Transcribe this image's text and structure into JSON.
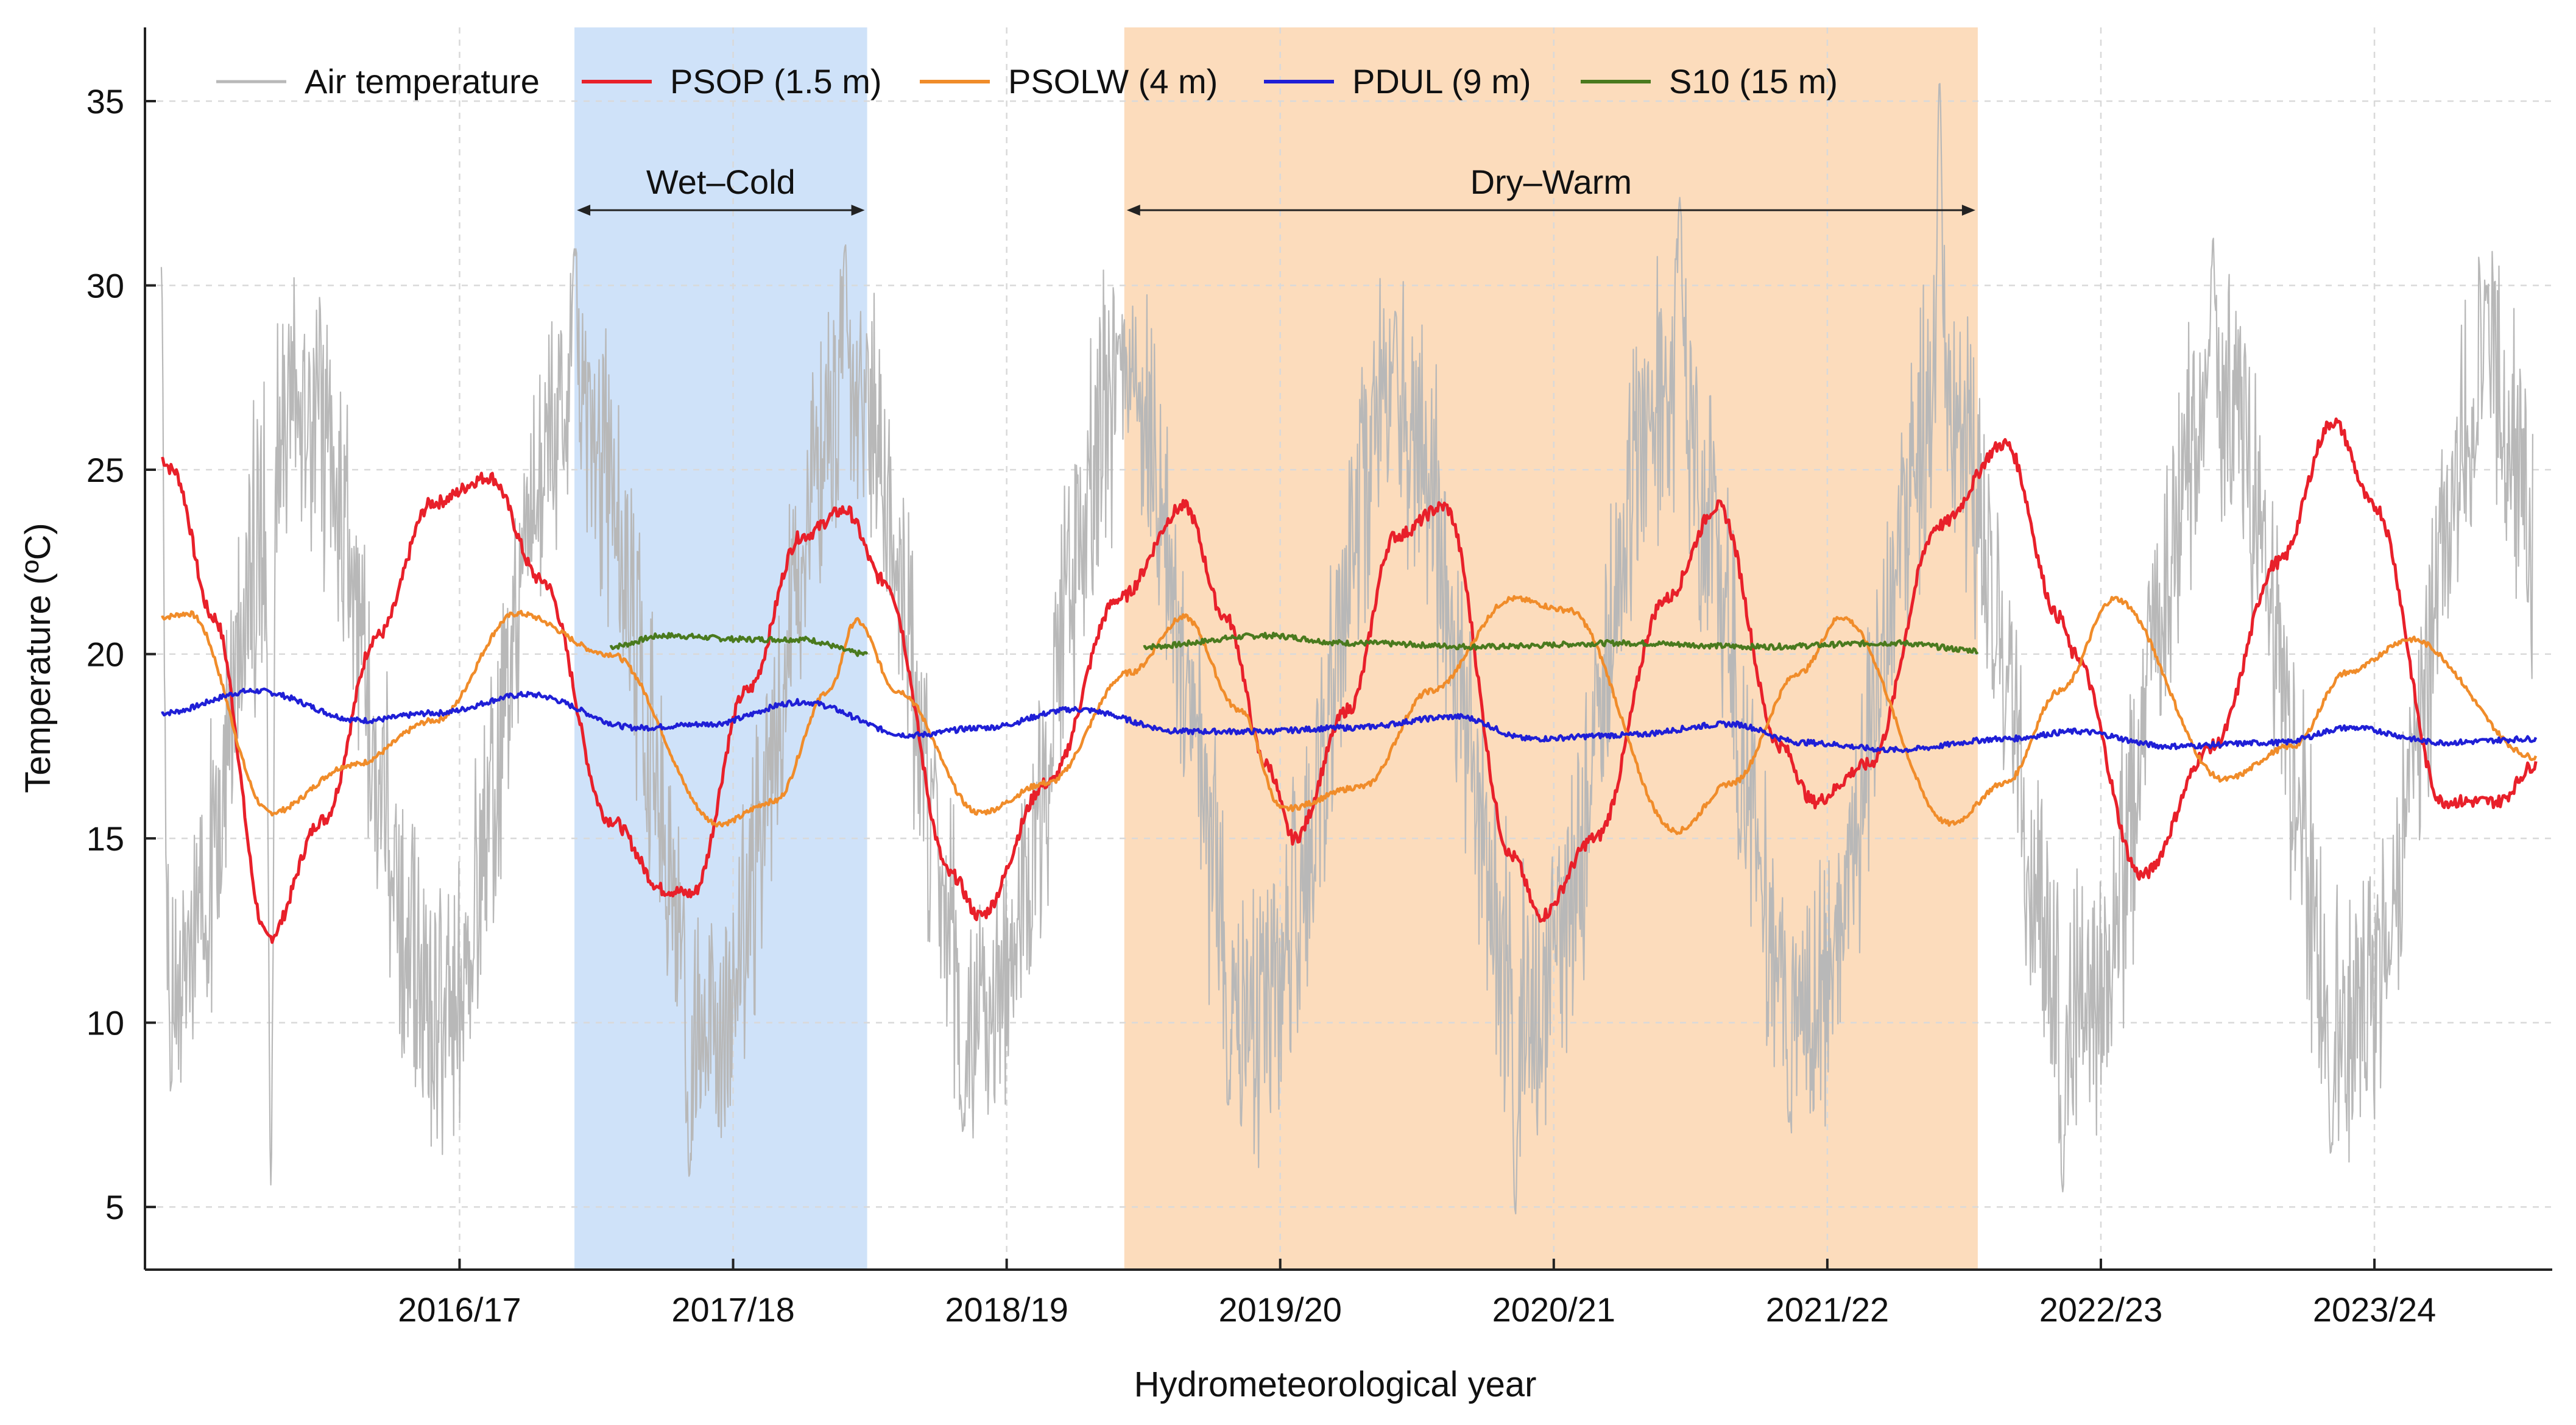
{
  "chart_data": {
    "type": "line",
    "title": "",
    "xlabel": "Hydrometeorological year",
    "ylabel": "Temperature (ºC)",
    "xlim": [
      2015.6,
      2024.4
    ],
    "ylim": [
      3.3,
      37.0
    ],
    "x_ticks": [
      {
        "value": 2016.75,
        "label": "2016/17"
      },
      {
        "value": 2017.75,
        "label": "2017/18"
      },
      {
        "value": 2018.75,
        "label": "2018/19"
      },
      {
        "value": 2019.75,
        "label": "2019/20"
      },
      {
        "value": 2020.75,
        "label": "2020/21"
      },
      {
        "value": 2021.75,
        "label": "2021/22"
      },
      {
        "value": 2022.75,
        "label": "2022/23"
      },
      {
        "value": 2023.75,
        "label": "2023/24"
      }
    ],
    "y_ticks": [
      5,
      10,
      15,
      20,
      25,
      30,
      35
    ],
    "grid": true,
    "legend_position": "top",
    "periods": [
      {
        "label": "Wet–Cold",
        "x_start": 2017.17,
        "x_end": 2018.24,
        "color": "#cfe2f9"
      },
      {
        "label": "Dry–Warm",
        "x_start": 2019.18,
        "x_end": 2022.3,
        "color": "#fcdcbc"
      }
    ],
    "series": [
      {
        "name": "Air temperature",
        "color": "#b8b8b8",
        "x": [
          2015.66,
          2016.16,
          2016.66,
          2017.16,
          2017.66,
          2018.16,
          2018.66,
          2019.16,
          2019.66,
          2020.16,
          2020.66,
          2021.16,
          2021.66,
          2022.16,
          2022.66,
          2023.16,
          2023.66,
          2024.16,
          2024.33
        ],
        "mean_cycle": {
          "mean": 18.5,
          "amplitude": 8.5,
          "peak_phase_years": 0.16,
          "daily_noise": 3.0
        },
        "extremes": [
          {
            "x": 2015.66,
            "y": 30.5
          },
          {
            "x": 2016.06,
            "y": 5.6
          },
          {
            "x": 2017.17,
            "y": 31.0
          },
          {
            "x": 2017.59,
            "y": 5.8
          },
          {
            "x": 2018.16,
            "y": 31.1
          },
          {
            "x": 2018.59,
            "y": 7.0
          },
          {
            "x": 2019.16,
            "y": 28.6
          },
          {
            "x": 2019.56,
            "y": 7.7
          },
          {
            "x": 2020.17,
            "y": 29.3
          },
          {
            "x": 2020.61,
            "y": 4.8
          },
          {
            "x": 2021.21,
            "y": 32.4
          },
          {
            "x": 2021.61,
            "y": 7.3
          },
          {
            "x": 2022.16,
            "y": 35.6
          },
          {
            "x": 2022.61,
            "y": 5.4
          },
          {
            "x": 2023.16,
            "y": 31.3
          },
          {
            "x": 2023.59,
            "y": 6.4
          },
          {
            "x": 2024.16,
            "y": 30.0
          }
        ]
      },
      {
        "name": "PSOP (1.5 m)",
        "color": "#e8202a",
        "x": [
          2015.66,
          2015.7,
          2015.85,
          2016.05,
          2016.25,
          2016.45,
          2016.65,
          2016.86,
          2017.05,
          2017.3,
          2017.5,
          2017.6,
          2017.8,
          2018.0,
          2018.16,
          2018.3,
          2018.55,
          2018.65,
          2018.9,
          2019.16,
          2019.4,
          2019.55,
          2019.7,
          2019.8,
          2020.0,
          2020.17,
          2020.35,
          2020.6,
          2020.7,
          2020.9,
          2021.16,
          2021.35,
          2021.58,
          2021.7,
          2021.9,
          2022.16,
          2022.4,
          2022.6,
          2022.65,
          2022.9,
          2023.16,
          2023.4,
          2023.6,
          2023.75,
          2024.0,
          2024.2,
          2024.34
        ],
        "y": [
          25.3,
          25.0,
          21.0,
          12.3,
          15.5,
          20.5,
          24.1,
          24.8,
          22.0,
          15.5,
          13.6,
          13.5,
          19.0,
          23.2,
          23.9,
          22.0,
          14.0,
          12.9,
          16.5,
          21.5,
          24.0,
          21.0,
          17.0,
          15.0,
          18.5,
          23.2,
          24.0,
          14.5,
          12.9,
          15.0,
          21.5,
          24.0,
          17.5,
          16.0,
          17.0,
          23.5,
          25.7,
          21.0,
          20.0,
          14.0,
          17.5,
          22.5,
          26.3,
          24.0,
          16.0,
          16.0,
          17.0
        ]
      },
      {
        "name": "PSOLW (4 m)",
        "color": "#f08c2a",
        "x": [
          2015.66,
          2015.76,
          2016.06,
          2016.36,
          2016.66,
          2016.96,
          2017.3,
          2017.7,
          2017.9,
          2018.1,
          2018.2,
          2018.35,
          2018.65,
          2018.9,
          2019.2,
          2019.4,
          2019.6,
          2019.76,
          2020.05,
          2020.3,
          2020.6,
          2020.8,
          2021.2,
          2021.4,
          2021.65,
          2021.8,
          2022.2,
          2022.4,
          2022.6,
          2022.8,
          2023.2,
          2023.45,
          2023.65,
          2023.88,
          2024.34
        ],
        "y": [
          21.0,
          21.1,
          15.7,
          17.0,
          18.2,
          21.1,
          20.0,
          15.4,
          16.0,
          19.0,
          20.9,
          19.0,
          15.7,
          16.5,
          19.5,
          21.0,
          18.5,
          15.8,
          16.4,
          19.0,
          21.5,
          21.2,
          15.2,
          16.5,
          19.5,
          21.0,
          15.4,
          16.5,
          19.0,
          21.5,
          16.6,
          17.5,
          19.5,
          20.4,
          17.2
        ]
      },
      {
        "name": "PDUL (9 m)",
        "color": "#1f1fd6",
        "x": [
          2015.66,
          2016.0,
          2016.4,
          2016.66,
          2017.0,
          2017.4,
          2017.66,
          2018.0,
          2018.4,
          2018.66,
          2019.0,
          2019.4,
          2019.66,
          2020.0,
          2020.4,
          2020.66,
          2021.0,
          2021.4,
          2021.66,
          2022.0,
          2022.4,
          2022.66,
          2023.0,
          2023.4,
          2023.66,
          2024.0,
          2024.34
        ],
        "y": [
          18.4,
          19.0,
          18.2,
          18.4,
          18.9,
          18.0,
          18.1,
          18.7,
          17.8,
          18.0,
          18.5,
          17.9,
          17.9,
          18.0,
          18.3,
          17.7,
          17.8,
          18.1,
          17.6,
          17.4,
          17.7,
          17.9,
          17.5,
          17.6,
          18.0,
          17.6,
          17.7
        ]
      },
      {
        "name": "S10 (15 m)",
        "color": "#4a7a1e",
        "segments": [
          {
            "x": [
              2017.3,
              2017.5,
              2017.8,
              2018.0,
              2018.24
            ],
            "y": [
              20.2,
              20.5,
              20.4,
              20.4,
              20.0
            ]
          },
          {
            "x": [
              2019.25,
              2019.7,
              2020.0,
              2020.5,
              2021.0,
              2021.5,
              2022.0,
              2022.3
            ],
            "y": [
              20.2,
              20.5,
              20.3,
              20.2,
              20.3,
              20.2,
              20.3,
              20.1
            ]
          }
        ]
      }
    ]
  }
}
